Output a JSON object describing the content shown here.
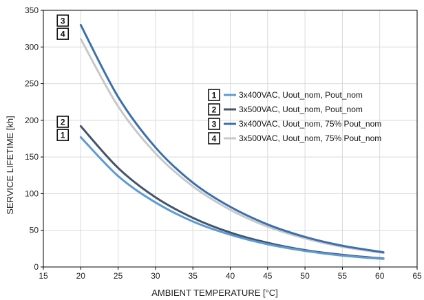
{
  "chart_data": {
    "type": "line",
    "xlabel": "AMBIENT TEMPERATURE [°C]",
    "ylabel": "SERVICE LIFETIME [kh]",
    "xlim": [
      15,
      65
    ],
    "ylim": [
      0,
      350
    ],
    "xticks": [
      15,
      20,
      25,
      30,
      35,
      40,
      45,
      50,
      55,
      60,
      65
    ],
    "yticks": [
      0,
      50,
      100,
      150,
      200,
      250,
      300,
      350
    ],
    "grid": true,
    "legend_position": "right",
    "series": [
      {
        "name": "3x400VAC, Uout_nom, Pout_nom",
        "id": "1",
        "color": "#5b9bd5",
        "x": [
          20,
          25,
          30,
          35,
          40,
          45,
          50,
          55,
          60.5
        ],
        "y": [
          177,
          124,
          88,
          62,
          44,
          31,
          22,
          15.5,
          11
        ]
      },
      {
        "name": "3x500VAC, Uout_nom, Pout_nom",
        "id": "2",
        "color": "#44546a",
        "x": [
          20,
          25,
          30,
          35,
          40,
          45,
          50,
          55,
          60.5
        ],
        "y": [
          192,
          135,
          95,
          67,
          47,
          33,
          23,
          16.5,
          11.5
        ]
      },
      {
        "name": "3x400VAC, Uout_nom, 75% Pout_nom",
        "id": "3",
        "color": "#3a6fb0",
        "x": [
          20,
          25,
          30,
          35,
          40,
          45,
          50,
          55,
          60.5
        ],
        "y": [
          330,
          232,
          163,
          115,
          82,
          58,
          41,
          29,
          20
        ]
      },
      {
        "name": "3x500VAC, Uout_nom, 75% Pout_nom",
        "id": "4",
        "color": "#c8c8c8",
        "x": [
          20,
          25,
          30,
          35,
          40,
          45,
          50,
          55,
          60.5
        ],
        "y": [
          311,
          219,
          155,
          110,
          78,
          55,
          39,
          27.5,
          19
        ]
      }
    ],
    "curve_tags": [
      {
        "id": "3",
        "x": 17.6,
        "y": 336
      },
      {
        "id": "4",
        "x": 17.6,
        "y": 318
      },
      {
        "id": "2",
        "x": 17.6,
        "y": 198
      },
      {
        "id": "1",
        "x": 17.6,
        "y": 180
      }
    ]
  }
}
